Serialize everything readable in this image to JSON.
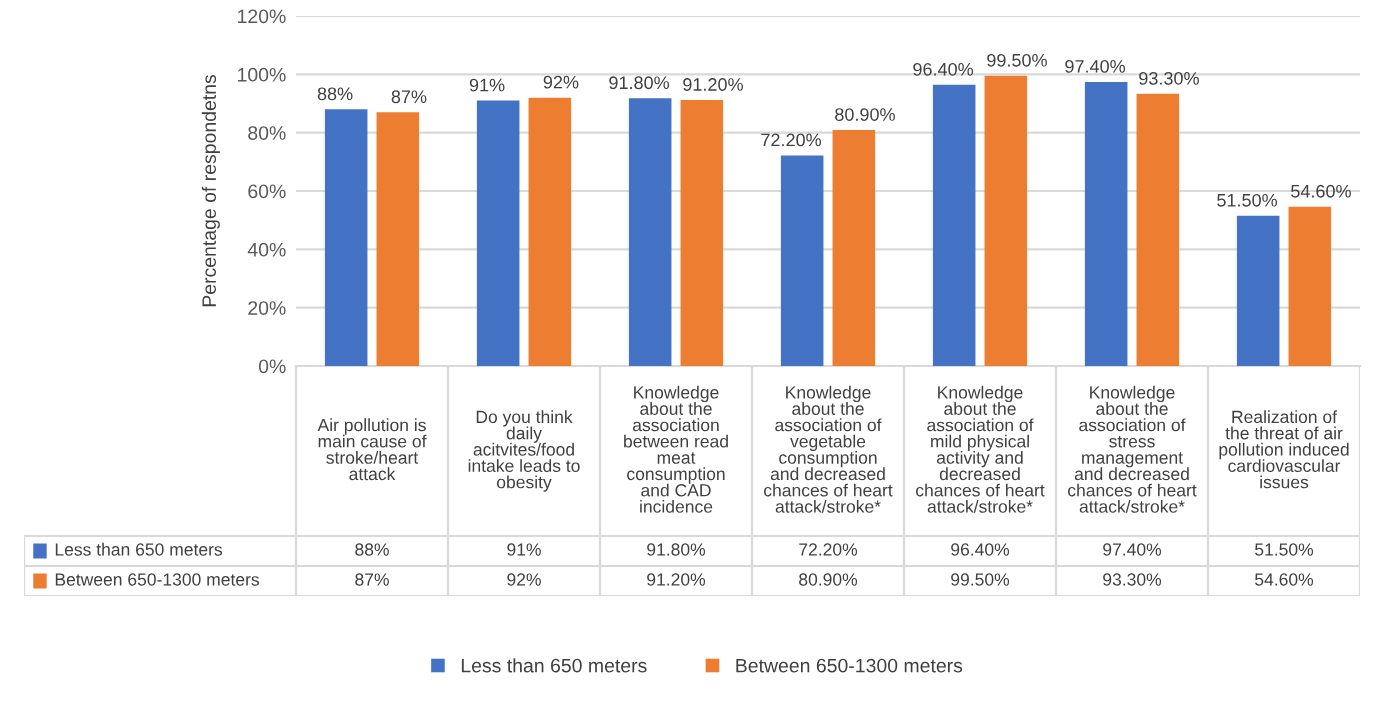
{
  "chart_data": {
    "type": "bar",
    "ylabel": "Percentage of respondetns",
    "categories": [
      "Air pollution is main cause of stroke/heart attack",
      "Do you think daily acitvites/food intake leads to obesity",
      "Knowledge about the association between read meat consumption and CAD incidence",
      "Knowledge about the association of vegetable consumption and decreased chances of heart attack/stroke*",
      "Knowledge about the association of mild physical activity and decreased chances of heart attack/stroke*",
      "Knowledge about the association of stress management and decreased chances of heart attack/stroke*",
      "Realization of the threat of air pollution induced cardiovascular issues"
    ],
    "series": [
      {
        "name": "Less than 650 meters",
        "color": "#4472c4",
        "values": [
          88,
          91,
          91.8,
          72.2,
          96.4,
          97.4,
          51.5
        ],
        "value_labels": [
          "88%",
          "91%",
          "91.80%",
          "72.20%",
          "96.40%",
          "97.40%",
          "51.50%"
        ]
      },
      {
        "name": "Between 650-1300 meters",
        "color": "#ed7d31",
        "values": [
          87,
          92,
          91.2,
          80.9,
          99.5,
          93.3,
          54.6
        ],
        "value_labels": [
          "87%",
          "92%",
          "91.20%",
          "80.90%",
          "99.50%",
          "93.30%",
          "54.60%"
        ]
      }
    ],
    "ylim": [
      0,
      120
    ],
    "yticks": [
      {
        "value": 0,
        "label": "0%"
      },
      {
        "value": 20,
        "label": "20%"
      },
      {
        "value": 40,
        "label": "40%"
      },
      {
        "value": 60,
        "label": "60%"
      },
      {
        "value": 80,
        "label": "80%"
      },
      {
        "value": 100,
        "label": "100%"
      },
      {
        "value": 120,
        "label": "120%"
      }
    ],
    "grid": "y",
    "legend": "bottom"
  }
}
